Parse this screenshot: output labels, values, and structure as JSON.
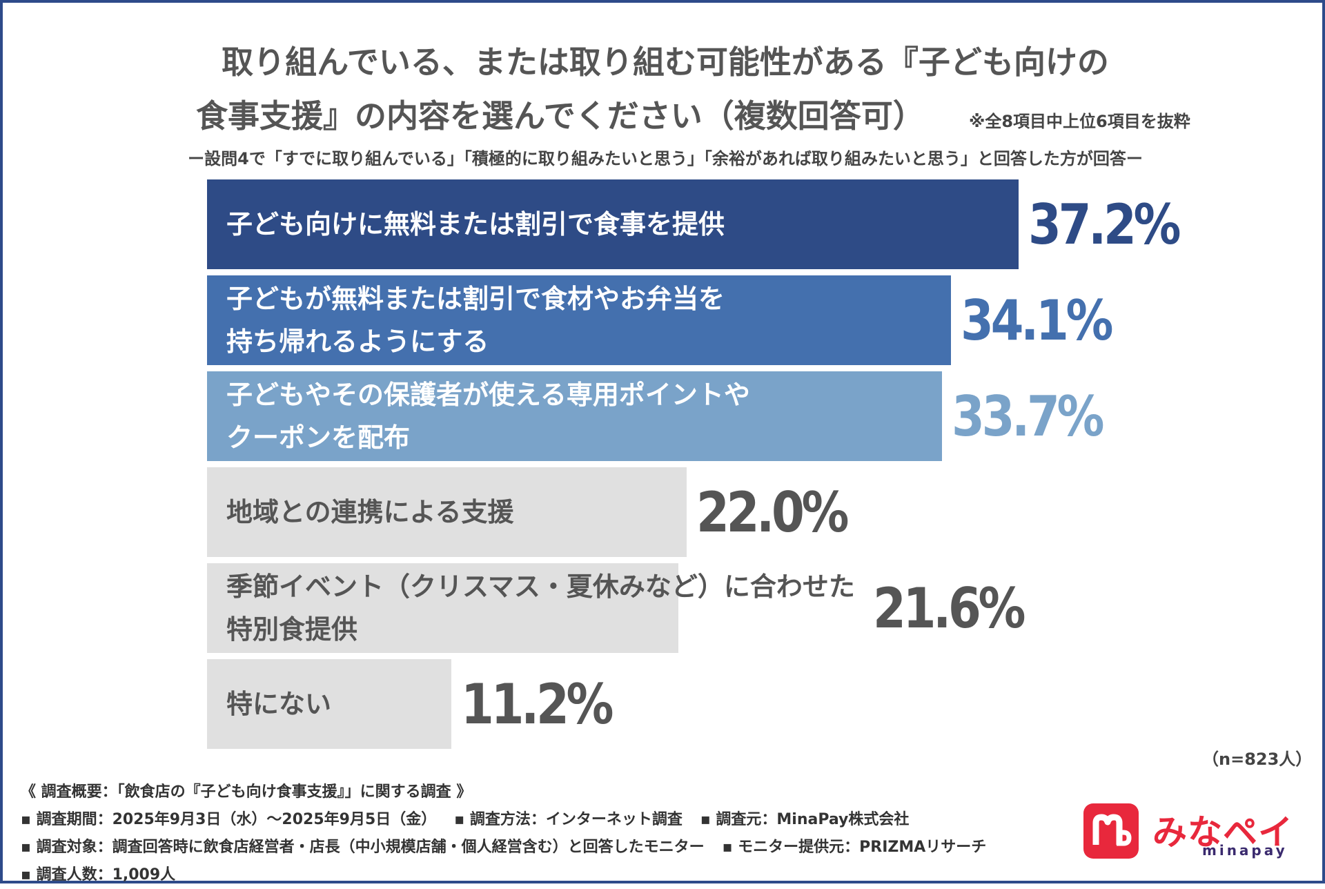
{
  "header": {
    "title_line1": "取り組んでいる、または取り組む可能性がある『子ども向けの",
    "title_line2": "食事支援』の内容を選んでください（複数回答可）",
    "note": "※全8項目中上位6項目を抜粋",
    "subtitle": "ー設問4で「すでに取り組んでいる」「積極的に取り組みたいと思う」「余裕があれば取り組みたいと思う」と回答した方が回答ー"
  },
  "chart_data": {
    "type": "bar",
    "orientation": "horizontal",
    "unit": "%",
    "n_label": "（n=823人）",
    "xlim": [
      0,
      45
    ],
    "grid": false,
    "legend": "none",
    "categories": [
      [
        "子ども向けに無料または割引で食事を提供"
      ],
      [
        "子どもが無料または割引で食材やお弁当を",
        "持ち帰れるようにする"
      ],
      [
        "子どもやその保護者が使える専用ポイントや",
        "クーポンを配布"
      ],
      [
        "地域との連携による支援"
      ],
      [
        "季節イベント（クリスマス・夏休みなど）に合わせた",
        "特別食提供"
      ],
      [
        "特にない"
      ]
    ],
    "values": [
      37.2,
      34.1,
      33.7,
      22.0,
      21.6,
      11.2
    ],
    "value_labels": [
      "37.2%",
      "34.1%",
      "33.7%",
      "22.0%",
      "21.6%",
      "11.2%"
    ],
    "bar_colors": [
      "#2e4b86",
      "#4470ae",
      "#7aa3c9",
      "#e0e0e0",
      "#e0e0e0",
      "#e0e0e0"
    ],
    "label_colors": [
      "#ffffff",
      "#ffffff",
      "#ffffff",
      "#555555",
      "#555555",
      "#555555"
    ],
    "value_colors": [
      "#2e4b86",
      "#4470ae",
      "#7aa3c9",
      "#555555",
      "#555555",
      "#555555"
    ]
  },
  "footer": {
    "heading": "《 調査概要：「飲食店の『子ども向け食事支援』」に関する調査 》",
    "period": "▪ 調査期間：2025年9月3日（水）～2025年9月5日（金）",
    "method": "▪ 調査方法：インターネット調査",
    "source": "▪ 調査元：MinaPay株式会社",
    "target": "▪ 調査対象：調査回答時に飲食店経営者・店長（中小規模店舗・個人経営含む）と回答したモニター",
    "provider": "▪ モニター提供元：PRIZMAリサーチ",
    "count": "▪ 調査人数：1,009人"
  },
  "logo": {
    "text": "みなペイ",
    "sub": "minapay",
    "brand_red": "#e8283c",
    "text_color": "#e8283c",
    "sub_color": "#3a2a6e"
  }
}
